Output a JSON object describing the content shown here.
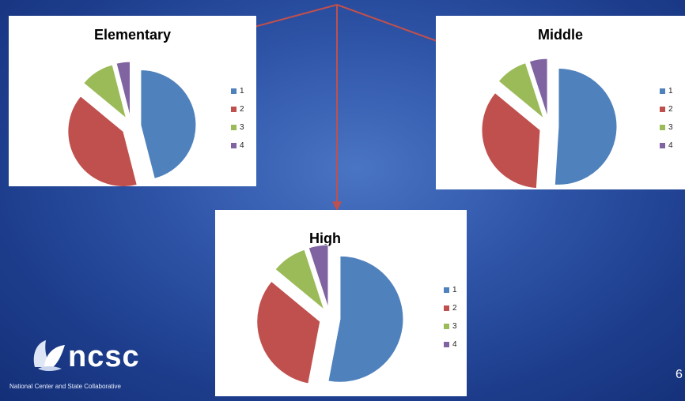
{
  "chart_data": [
    {
      "type": "pie",
      "title": "Elementary",
      "categories": [
        "1",
        "2",
        "3",
        "4"
      ],
      "values": [
        46,
        40,
        10,
        4
      ],
      "legend": "right",
      "colors": [
        "#4f81bd",
        "#c0504d",
        "#9bbb59",
        "#8064a2"
      ]
    },
    {
      "type": "pie",
      "title": "Middle",
      "categories": [
        "1",
        "2",
        "3",
        "4"
      ],
      "values": [
        51,
        35,
        9,
        5
      ],
      "legend": "right",
      "colors": [
        "#4f81bd",
        "#c0504d",
        "#9bbb59",
        "#8064a2"
      ]
    },
    {
      "type": "pie",
      "title": "High",
      "categories": [
        "1",
        "2",
        "3",
        "4"
      ],
      "values": [
        53,
        33,
        9,
        5
      ],
      "legend": "right",
      "colors": [
        "#4f81bd",
        "#c0504d",
        "#9bbb59",
        "#8064a2"
      ]
    }
  ],
  "logo": {
    "name": "ncsc",
    "tagline": "National Center and State Collaborative"
  },
  "slide_number": "6",
  "colors": {
    "background": "#2f55a8",
    "arrow": "#c0504d"
  }
}
